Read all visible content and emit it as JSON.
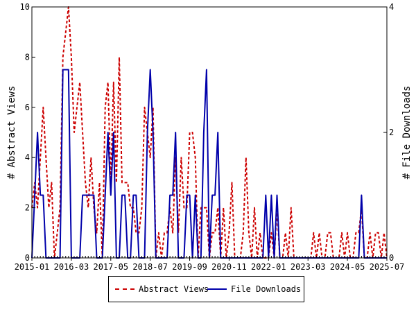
{
  "chart_data": {
    "type": "line",
    "x_tick_labels": [
      "2015-01",
      "2016-03",
      "2017-05",
      "2018-07",
      "2019-09",
      "2020-11",
      "2022-01",
      "2023-03",
      "2024-05",
      "2025-07"
    ],
    "x_range": [
      "2015-01",
      "2025-07"
    ],
    "ylabel": "# Abstract Views",
    "ylim": [
      0,
      10
    ],
    "y_ticks": [
      0,
      2,
      4,
      6,
      8,
      10
    ],
    "y2label": "# File Downloads",
    "y2lim": [
      0,
      4
    ],
    "y2_ticks": [
      0,
      2,
      4
    ],
    "grid": false,
    "legend_position": "bottom",
    "series": [
      {
        "name": "Abstract Views",
        "axis": "left",
        "color": "#cc0000",
        "style": "dashed",
        "points": [
          [
            "2015-01",
            2
          ],
          [
            "2015-02",
            3
          ],
          [
            "2015-03",
            2
          ],
          [
            "2015-04",
            4
          ],
          [
            "2015-05",
            6
          ],
          [
            "2015-06",
            4
          ],
          [
            "2015-07",
            2
          ],
          [
            "2015-08",
            3
          ],
          [
            "2015-09",
            0
          ],
          [
            "2015-10",
            1
          ],
          [
            "2015-11",
            2
          ],
          [
            "2015-12",
            8
          ],
          [
            "2016-01",
            9
          ],
          [
            "2016-02",
            10
          ],
          [
            "2016-03",
            8
          ],
          [
            "2016-04",
            5
          ],
          [
            "2016-05",
            6
          ],
          [
            "2016-06",
            7
          ],
          [
            "2016-07",
            5
          ],
          [
            "2016-08",
            3
          ],
          [
            "2016-09",
            2
          ],
          [
            "2016-10",
            4
          ],
          [
            "2016-11",
            2
          ],
          [
            "2016-12",
            1
          ],
          [
            "2017-01",
            3
          ],
          [
            "2017-02",
            0
          ],
          [
            "2017-03",
            6
          ],
          [
            "2017-04",
            7
          ],
          [
            "2017-05",
            3
          ],
          [
            "2017-06",
            7
          ],
          [
            "2017-07",
            3
          ],
          [
            "2017-08",
            8
          ],
          [
            "2017-09",
            3
          ],
          [
            "2017-10",
            3
          ],
          [
            "2017-11",
            3
          ],
          [
            "2017-12",
            2
          ],
          [
            "2018-01",
            2
          ],
          [
            "2018-02",
            1
          ],
          [
            "2018-03",
            1
          ],
          [
            "2018-04",
            2
          ],
          [
            "2018-05",
            6
          ],
          [
            "2018-06",
            5
          ],
          [
            "2018-07",
            4
          ],
          [
            "2018-08",
            6
          ],
          [
            "2018-09",
            0
          ],
          [
            "2018-10",
            1
          ],
          [
            "2018-11",
            0
          ],
          [
            "2018-12",
            1
          ],
          [
            "2019-01",
            1
          ],
          [
            "2019-02",
            2
          ],
          [
            "2019-03",
            1
          ],
          [
            "2019-04",
            4
          ],
          [
            "2019-05",
            1
          ],
          [
            "2019-06",
            4
          ],
          [
            "2019-07",
            2
          ],
          [
            "2019-08",
            2
          ],
          [
            "2019-09",
            5
          ],
          [
            "2019-10",
            5
          ],
          [
            "2019-11",
            4
          ],
          [
            "2019-12",
            0
          ],
          [
            "2020-01",
            2
          ],
          [
            "2020-02",
            2
          ],
          [
            "2020-03",
            2
          ],
          [
            "2020-04",
            0
          ],
          [
            "2020-05",
            1
          ],
          [
            "2020-06",
            1
          ],
          [
            "2020-07",
            2
          ],
          [
            "2020-08",
            0
          ],
          [
            "2020-09",
            2
          ],
          [
            "2020-10",
            0
          ],
          [
            "2020-11",
            1
          ],
          [
            "2020-12",
            3
          ],
          [
            "2021-01",
            0
          ],
          [
            "2021-02",
            0
          ],
          [
            "2021-03",
            0
          ],
          [
            "2021-04",
            1
          ],
          [
            "2021-05",
            4
          ],
          [
            "2021-06",
            1
          ],
          [
            "2021-07",
            0
          ],
          [
            "2021-08",
            2
          ],
          [
            "2021-09",
            0
          ],
          [
            "2021-10",
            1
          ],
          [
            "2021-11",
            0
          ],
          [
            "2021-12",
            0
          ],
          [
            "2022-01",
            0
          ],
          [
            "2022-02",
            1
          ],
          [
            "2022-03",
            0
          ],
          [
            "2022-04",
            2
          ],
          [
            "2022-05",
            0
          ],
          [
            "2022-06",
            0
          ],
          [
            "2022-07",
            1
          ],
          [
            "2022-08",
            0
          ],
          [
            "2022-09",
            2
          ],
          [
            "2022-10",
            0
          ],
          [
            "2022-11",
            0
          ],
          [
            "2022-12",
            0
          ],
          [
            "2023-01",
            0
          ],
          [
            "2023-02",
            0
          ],
          [
            "2023-03",
            0
          ],
          [
            "2023-04",
            0
          ],
          [
            "2023-05",
            1
          ],
          [
            "2023-06",
            0
          ],
          [
            "2023-07",
            1
          ],
          [
            "2023-08",
            0
          ],
          [
            "2023-09",
            0
          ],
          [
            "2023-10",
            1
          ],
          [
            "2023-11",
            1
          ],
          [
            "2023-12",
            0
          ],
          [
            "2024-01",
            0
          ],
          [
            "2024-02",
            0
          ],
          [
            "2024-03",
            1
          ],
          [
            "2024-04",
            0
          ],
          [
            "2024-05",
            1
          ],
          [
            "2024-06",
            0
          ],
          [
            "2024-07",
            0
          ],
          [
            "2024-08",
            1
          ],
          [
            "2024-09",
            1
          ],
          [
            "2024-10",
            2
          ],
          [
            "2024-11",
            0
          ],
          [
            "2024-12",
            0
          ],
          [
            "2025-01",
            1
          ],
          [
            "2025-02",
            0
          ],
          [
            "2025-03",
            1
          ],
          [
            "2025-04",
            1
          ],
          [
            "2025-05",
            0
          ],
          [
            "2025-06",
            1
          ],
          [
            "2025-07",
            0
          ]
        ]
      },
      {
        "name": "File Downloads",
        "axis": "right",
        "color": "#0000aa",
        "style": "solid",
        "points": [
          [
            "2015-01",
            0
          ],
          [
            "2015-02",
            1
          ],
          [
            "2015-03",
            2
          ],
          [
            "2015-04",
            1
          ],
          [
            "2015-05",
            1
          ],
          [
            "2015-06",
            0
          ],
          [
            "2015-07",
            0
          ],
          [
            "2015-08",
            0
          ],
          [
            "2015-09",
            0
          ],
          [
            "2015-10",
            0
          ],
          [
            "2015-11",
            0
          ],
          [
            "2015-12",
            3
          ],
          [
            "2016-01",
            3
          ],
          [
            "2016-02",
            3
          ],
          [
            "2016-03",
            0
          ],
          [
            "2016-04",
            0
          ],
          [
            "2016-05",
            0
          ],
          [
            "2016-06",
            0
          ],
          [
            "2016-07",
            1
          ],
          [
            "2016-08",
            1
          ],
          [
            "2016-09",
            1
          ],
          [
            "2016-10",
            1
          ],
          [
            "2016-11",
            1
          ],
          [
            "2016-12",
            0
          ],
          [
            "2017-01",
            0
          ],
          [
            "2017-02",
            0
          ],
          [
            "2017-03",
            1
          ],
          [
            "2017-04",
            2
          ],
          [
            "2017-05",
            1
          ],
          [
            "2017-06",
            2
          ],
          [
            "2017-07",
            0
          ],
          [
            "2017-08",
            0
          ],
          [
            "2017-09",
            1
          ],
          [
            "2017-10",
            1
          ],
          [
            "2017-11",
            0
          ],
          [
            "2017-12",
            0
          ],
          [
            "2018-01",
            1
          ],
          [
            "2018-02",
            1
          ],
          [
            "2018-03",
            0
          ],
          [
            "2018-04",
            0
          ],
          [
            "2018-05",
            0
          ],
          [
            "2018-06",
            2
          ],
          [
            "2018-07",
            3
          ],
          [
            "2018-08",
            2
          ],
          [
            "2018-09",
            0
          ],
          [
            "2018-10",
            0
          ],
          [
            "2018-11",
            0
          ],
          [
            "2018-12",
            0
          ],
          [
            "2019-01",
            0
          ],
          [
            "2019-02",
            1
          ],
          [
            "2019-03",
            1
          ],
          [
            "2019-04",
            2
          ],
          [
            "2019-05",
            0
          ],
          [
            "2019-06",
            0
          ],
          [
            "2019-07",
            0
          ],
          [
            "2019-08",
            1
          ],
          [
            "2019-09",
            1
          ],
          [
            "2019-10",
            0
          ],
          [
            "2019-11",
            1
          ],
          [
            "2019-12",
            0
          ],
          [
            "2020-01",
            0
          ],
          [
            "2020-02",
            2
          ],
          [
            "2020-03",
            3
          ],
          [
            "2020-04",
            0
          ],
          [
            "2020-05",
            1
          ],
          [
            "2020-06",
            1
          ],
          [
            "2020-07",
            2
          ],
          [
            "2020-08",
            0
          ],
          [
            "2020-09",
            0
          ],
          [
            "2020-10",
            0
          ],
          [
            "2020-11",
            0
          ],
          [
            "2020-12",
            0
          ],
          [
            "2021-01",
            0
          ],
          [
            "2021-02",
            0
          ],
          [
            "2021-03",
            0
          ],
          [
            "2021-04",
            0
          ],
          [
            "2021-05",
            0
          ],
          [
            "2021-06",
            0
          ],
          [
            "2021-07",
            0
          ],
          [
            "2021-08",
            0
          ],
          [
            "2021-09",
            0
          ],
          [
            "2021-10",
            0
          ],
          [
            "2021-11",
            0
          ],
          [
            "2021-12",
            1
          ],
          [
            "2022-01",
            0
          ],
          [
            "2022-02",
            1
          ],
          [
            "2022-03",
            0
          ],
          [
            "2022-04",
            1
          ],
          [
            "2022-05",
            0
          ],
          [
            "2022-06",
            0
          ],
          [
            "2022-07",
            0
          ],
          [
            "2022-08",
            0
          ],
          [
            "2022-09",
            0
          ],
          [
            "2022-10",
            0
          ],
          [
            "2022-11",
            0
          ],
          [
            "2022-12",
            0
          ],
          [
            "2023-01",
            0
          ],
          [
            "2023-02",
            0
          ],
          [
            "2023-03",
            0
          ],
          [
            "2023-04",
            0
          ],
          [
            "2023-05",
            0
          ],
          [
            "2023-06",
            0
          ],
          [
            "2023-07",
            0
          ],
          [
            "2023-08",
            0
          ],
          [
            "2023-09",
            0
          ],
          [
            "2023-10",
            0
          ],
          [
            "2023-11",
            0
          ],
          [
            "2023-12",
            0
          ],
          [
            "2024-01",
            0
          ],
          [
            "2024-02",
            0
          ],
          [
            "2024-03",
            0
          ],
          [
            "2024-04",
            0
          ],
          [
            "2024-05",
            0
          ],
          [
            "2024-06",
            0
          ],
          [
            "2024-07",
            0
          ],
          [
            "2024-08",
            0
          ],
          [
            "2024-09",
            0
          ],
          [
            "2024-10",
            1
          ],
          [
            "2024-11",
            0
          ],
          [
            "2024-12",
            0
          ],
          [
            "2025-01",
            0
          ],
          [
            "2025-02",
            0
          ],
          [
            "2025-03",
            0
          ],
          [
            "2025-04",
            0
          ],
          [
            "2025-05",
            0
          ],
          [
            "2025-06",
            0
          ],
          [
            "2025-07",
            0
          ]
        ]
      }
    ]
  }
}
